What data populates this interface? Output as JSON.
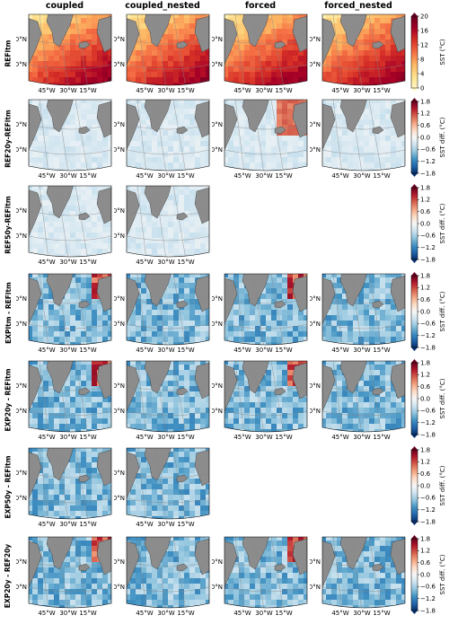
{
  "figure": {
    "columns": [
      "coupled",
      "coupled_nested",
      "forced",
      "forced_nested"
    ],
    "rows": [
      {
        "label": "REFltm",
        "present": [
          1,
          1,
          1,
          1
        ],
        "cbar": "abs"
      },
      {
        "label": "REF20y-REFltm",
        "present": [
          1,
          1,
          1,
          1
        ],
        "cbar": "diff"
      },
      {
        "label": "REF50y-REFltm",
        "present": [
          1,
          1,
          0,
          0
        ],
        "cbar": "diff"
      },
      {
        "label": "EXPltm - REFltm",
        "present": [
          1,
          1,
          1,
          1
        ],
        "cbar": "diff"
      },
      {
        "label": "EXP20y - REFltm",
        "present": [
          1,
          1,
          1,
          1
        ],
        "cbar": "diff"
      },
      {
        "label": "EXP50y - REFltm",
        "present": [
          1,
          1,
          0,
          0
        ],
        "cbar": "diff"
      },
      {
        "label": "EXP20y - REF20y",
        "present": [
          1,
          1,
          1,
          1
        ],
        "cbar": "diff"
      }
    ],
    "lat_labels": [
      "60°N",
      "50°N"
    ],
    "lon_labels": [
      "45°W",
      "30°W",
      "15°W"
    ]
  },
  "colors": {
    "land": "#8c8c8c",
    "abs_colormap": [
      "#fff7c2",
      "#fee08b",
      "#fdb462",
      "#f46d43",
      "#d73027",
      "#a50026",
      "#67001f"
    ],
    "diff_colormap": [
      "#08306b",
      "#2166ac",
      "#4393c3",
      "#92c5de",
      "#d1e5f0",
      "#f7f7f7",
      "#fddbc7",
      "#f4a582",
      "#d6604d",
      "#b2182b",
      "#67001f"
    ]
  },
  "chart_data": {
    "type": "heatmap",
    "colorbars": [
      {
        "id": "abs",
        "label": "SST (°C)",
        "ticks": [
          0,
          4,
          8,
          12,
          16,
          20
        ],
        "tick_labels": [
          "0",
          "4",
          "8",
          "12",
          "16",
          "20"
        ],
        "range": [
          0,
          20
        ]
      },
      {
        "id": "diff",
        "label": "SST diff. (°C)",
        "ticks": [
          -1.8,
          -1.2,
          -0.6,
          0.0,
          0.6,
          1.2,
          1.8
        ],
        "tick_labels": [
          "−1.8",
          "−1.2",
          "−0.6",
          "0.0",
          "0.6",
          "1.2",
          "1.8"
        ],
        "range": [
          -1.8,
          1.8
        ]
      }
    ]
  }
}
